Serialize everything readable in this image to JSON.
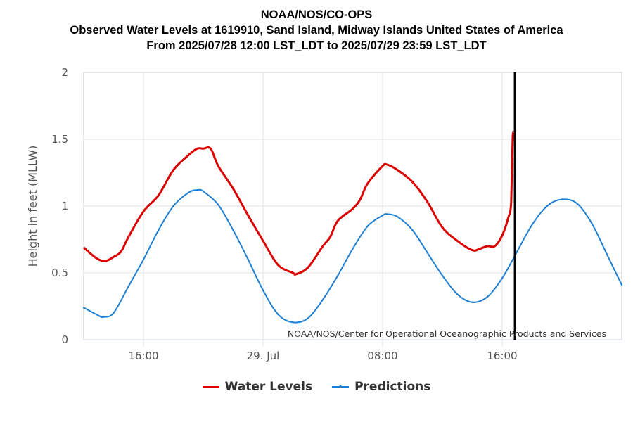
{
  "titles": {
    "line1": "NOAA/NOS/CO-OPS",
    "line2": "Observed Water Levels at 1619910, Sand Island, Midway Islands United States of America",
    "line3": "From 2025/07/28 12:00 LST_LDT to 2025/07/29 23:59 LST_LDT"
  },
  "credit": "NOAA/NOS/Center for Operational Oceanographic Products and Services",
  "legend": {
    "water_levels": "Water Levels",
    "predictions": "Predictions"
  },
  "colors": {
    "water_levels": "#dd0000",
    "predictions": "#1f7fd1",
    "marker_line": "#000000",
    "grid": "#e3e3e3"
  },
  "chart_data": {
    "type": "line",
    "title": "NOAA/NOS/CO-OPS — Observed Water Levels at 1619910, Sand Island, Midway Islands United States of America",
    "subtitle": "From 2025/07/28 12:00 LST_LDT to 2025/07/29 23:59 LST_LDT",
    "xlabel": "",
    "ylabel": "Height in feet (MLLW)",
    "x_units": "hours since 2025/07/28 12:00",
    "xlim": [
      0,
      36
    ],
    "ylim": [
      0,
      2
    ],
    "yticks": [
      0,
      0.5,
      1,
      1.5,
      2
    ],
    "ytick_labels": [
      "0",
      "0.5",
      "1",
      "1.5",
      "2"
    ],
    "xticks": [
      4,
      12,
      20,
      28
    ],
    "xtick_labels": [
      "16:00",
      "29. Jul",
      "08:00",
      "16:00"
    ],
    "grid": true,
    "legend_position": "bottom-center",
    "vertical_marker_x": 28.85,
    "series": [
      {
        "name": "Water Levels",
        "x": [
          0,
          0.5,
          1,
          1.5,
          2,
          2.5,
          3,
          4,
          5,
          6,
          7,
          7.6,
          8,
          8.5,
          9,
          10,
          11,
          12,
          13,
          14,
          14.2,
          15,
          16,
          16.5,
          17,
          18,
          18.5,
          19,
          20,
          20.3,
          21,
          22,
          23,
          24,
          25,
          26,
          26.5,
          27,
          27.5,
          28,
          28.4,
          28.6,
          28.7,
          28.75
        ],
        "values": [
          0.69,
          0.64,
          0.6,
          0.59,
          0.62,
          0.66,
          0.77,
          0.96,
          1.08,
          1.27,
          1.38,
          1.43,
          1.43,
          1.43,
          1.3,
          1.13,
          0.93,
          0.74,
          0.56,
          0.5,
          0.49,
          0.54,
          0.7,
          0.77,
          0.89,
          0.98,
          1.05,
          1.17,
          1.3,
          1.31,
          1.27,
          1.18,
          1.03,
          0.84,
          0.74,
          0.67,
          0.68,
          0.7,
          0.7,
          0.78,
          0.91,
          1.03,
          1.5,
          1.55
        ]
      },
      {
        "name": "Predictions",
        "x": [
          0,
          1,
          1.3,
          2,
          3,
          4,
          5,
          6,
          7,
          7.6,
          8,
          9,
          10,
          11,
          12,
          13,
          14,
          15,
          16,
          17,
          18,
          19,
          20,
          20.3,
          21,
          22,
          23,
          24,
          25,
          26,
          27,
          28,
          29,
          30,
          31,
          32,
          33,
          34,
          35,
          36
        ],
        "values": [
          0.24,
          0.18,
          0.17,
          0.2,
          0.4,
          0.6,
          0.82,
          1.0,
          1.1,
          1.12,
          1.11,
          1.01,
          0.82,
          0.6,
          0.37,
          0.19,
          0.13,
          0.16,
          0.3,
          0.48,
          0.68,
          0.85,
          0.93,
          0.94,
          0.92,
          0.82,
          0.65,
          0.48,
          0.34,
          0.28,
          0.32,
          0.46,
          0.66,
          0.86,
          1.0,
          1.05,
          1.02,
          0.87,
          0.64,
          0.41
        ]
      }
    ]
  }
}
